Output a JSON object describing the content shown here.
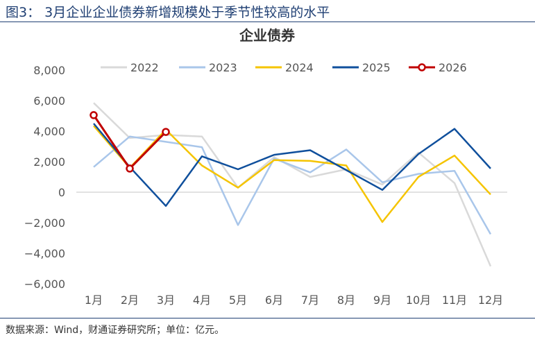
{
  "figure_title": "图3： 3月企业企业债券新增规模处于季节性较高的水平",
  "source_note": "数据来源：Wind，财通证券研究所；单位：亿元。",
  "chart_data": {
    "type": "line",
    "title": "企业债券",
    "categories": [
      "1月",
      "2月",
      "3月",
      "4月",
      "5月",
      "6月",
      "7月",
      "8月",
      "9月",
      "10月",
      "11月",
      "12月"
    ],
    "ylim": [
      -6000,
      8000
    ],
    "yticks": [
      8000,
      6000,
      4000,
      2000,
      0,
      -2000,
      -4000,
      -6000
    ],
    "ytick_labels": [
      "8,000",
      "6,000",
      "4,000",
      "2,000",
      "0",
      "−2,000",
      "−4,000",
      "−6,000"
    ],
    "grid": false,
    "legend_position": "top",
    "series": [
      {
        "name": "2022",
        "color": "#d9d9d9",
        "markers": false,
        "values": [
          5850,
          3550,
          3750,
          3650,
          300,
          2300,
          1000,
          1500,
          500,
          2600,
          600,
          -4850
        ]
      },
      {
        "name": "2023",
        "color": "#a9c6ea",
        "markers": false,
        "values": [
          1650,
          3650,
          3300,
          2950,
          -2150,
          2200,
          1300,
          2800,
          650,
          1200,
          1400,
          -2750
        ]
      },
      {
        "name": "2024",
        "color": "#f5c400",
        "markers": false,
        "values": [
          4350,
          1600,
          4100,
          1750,
          300,
          2100,
          2050,
          1750,
          -1950,
          1000,
          2400,
          -150
        ]
      },
      {
        "name": "2025",
        "color": "#0f4f9c",
        "markers": false,
        "values": [
          4500,
          1650,
          -900,
          2350,
          1500,
          2450,
          2750,
          1450,
          150,
          2500,
          4150,
          1550
        ]
      },
      {
        "name": "2026",
        "color": "#c00000",
        "markers": true,
        "values": [
          5050,
          1550,
          3950,
          null,
          null,
          null,
          null,
          null,
          null,
          null,
          null,
          null
        ]
      }
    ]
  }
}
